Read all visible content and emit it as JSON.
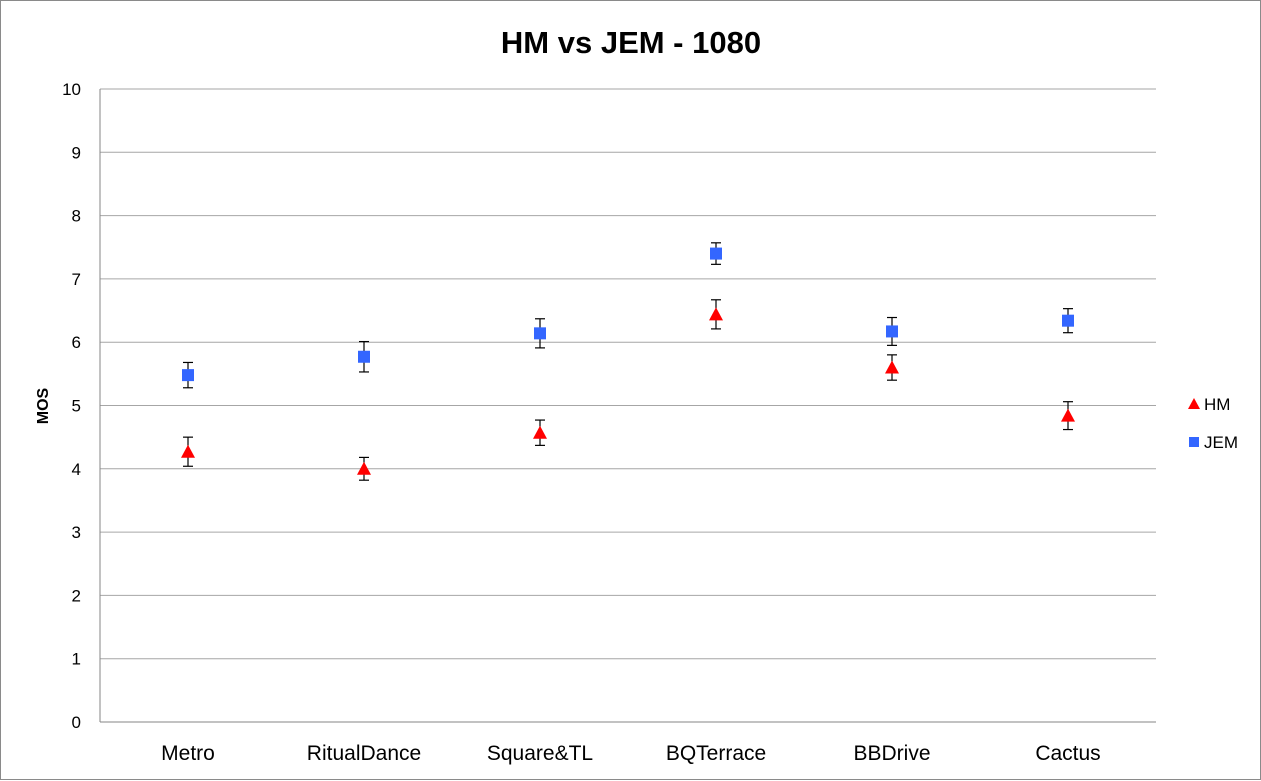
{
  "chart_data": {
    "type": "scatter",
    "title": "HM vs JEM - 1080",
    "xlabel": "",
    "ylabel": "MOS",
    "ylim": [
      0,
      10
    ],
    "yticks": [
      0,
      1,
      2,
      3,
      4,
      5,
      6,
      7,
      8,
      9,
      10
    ],
    "categories": [
      "Metro",
      "RitualDance",
      "Square&TL",
      "BQTerrace",
      "BBDrive",
      "Cactus"
    ],
    "grid": "horizontal",
    "legend_position": "right",
    "series": [
      {
        "name": "HM",
        "marker": "triangle",
        "color": "#ff0000",
        "values": [
          4.27,
          4.0,
          4.57,
          6.44,
          5.6,
          4.84
        ],
        "error": [
          0.23,
          0.18,
          0.2,
          0.23,
          0.2,
          0.22
        ]
      },
      {
        "name": "JEM",
        "marker": "square",
        "color": "#3366ff",
        "values": [
          5.48,
          5.77,
          6.14,
          7.4,
          6.17,
          6.34
        ],
        "error": [
          0.2,
          0.24,
          0.23,
          0.17,
          0.22,
          0.19
        ]
      }
    ]
  }
}
